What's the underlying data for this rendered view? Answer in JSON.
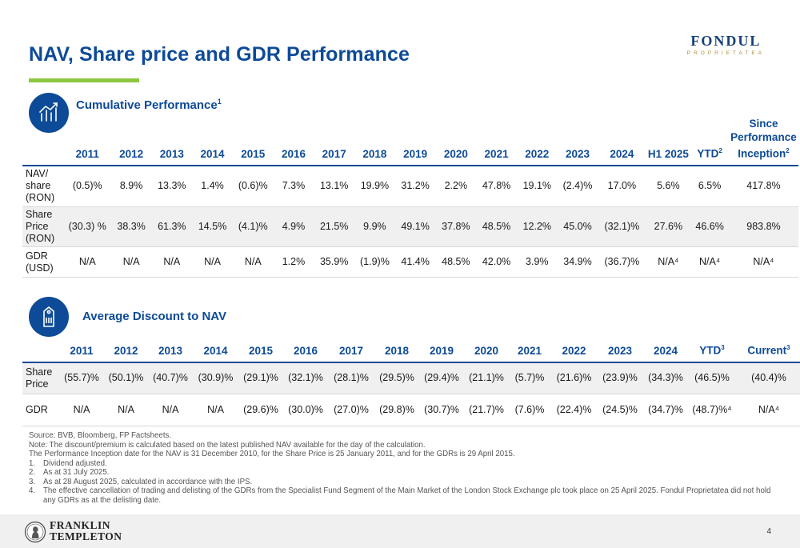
{
  "header": {
    "title": "NAV, Share price and GDR Performance",
    "logo_name": "FONDUL",
    "logo_sub": "PROPRIETATEA"
  },
  "cumulative": {
    "title": "Cumulative Performance",
    "title_sup": "1",
    "columns": [
      {
        "label": "2011",
        "sup": ""
      },
      {
        "label": "2012",
        "sup": ""
      },
      {
        "label": "2013",
        "sup": ""
      },
      {
        "label": "2014",
        "sup": ""
      },
      {
        "label": "2015",
        "sup": ""
      },
      {
        "label": "2016",
        "sup": ""
      },
      {
        "label": "2017",
        "sup": ""
      },
      {
        "label": "2018",
        "sup": ""
      },
      {
        "label": "2019",
        "sup": ""
      },
      {
        "label": "2020",
        "sup": ""
      },
      {
        "label": "2021",
        "sup": ""
      },
      {
        "label": "2022",
        "sup": ""
      },
      {
        "label": "2023",
        "sup": ""
      },
      {
        "label": "2024",
        "sup": ""
      },
      {
        "label": "H1 2025",
        "sup": ""
      },
      {
        "label": "YTD",
        "sup": "2"
      },
      {
        "label": "Since Performance Inception",
        "sup": "2"
      }
    ],
    "rows": [
      {
        "label": "NAV/ share (RON)",
        "values": [
          "(0.5)%",
          "8.9%",
          "13.3%",
          "1.4%",
          "(0.6)%",
          "7.3%",
          "13.1%",
          "19.9%",
          "31.2%",
          "2.2%",
          "47.8%",
          "19.1%",
          "(2.4)%",
          "17.0%",
          "5.6%",
          "6.5%",
          "417.8%"
        ]
      },
      {
        "label": "Share Price (RON)",
        "values": [
          "(30.3) %",
          "38.3%",
          "61.3%",
          "14.5%",
          "(4.1)%",
          "4.9%",
          "21.5%",
          "9.9%",
          "49.1%",
          "37.8%",
          "48.5%",
          "12.2%",
          "45.0%",
          "(32.1)%",
          "27.6%",
          "46.6%",
          "983.8%"
        ]
      },
      {
        "label": "GDR (USD)",
        "values": [
          "N/A",
          "N/A",
          "N/A",
          "N/A",
          "N/A",
          "1.2%",
          "35.9%",
          "(1.9)%",
          "41.4%",
          "48.5%",
          "42.0%",
          "3.9%",
          "34.9%",
          "(36.7)%",
          "N/A⁴",
          "N/A⁴",
          "N/A⁴"
        ]
      }
    ]
  },
  "discount": {
    "title": "Average Discount to NAV",
    "columns": [
      {
        "label": "2011",
        "sup": ""
      },
      {
        "label": "2012",
        "sup": ""
      },
      {
        "label": "2013",
        "sup": ""
      },
      {
        "label": "2014",
        "sup": ""
      },
      {
        "label": "2015",
        "sup": ""
      },
      {
        "label": "2016",
        "sup": ""
      },
      {
        "label": "2017",
        "sup": ""
      },
      {
        "label": "2018",
        "sup": ""
      },
      {
        "label": "2019",
        "sup": ""
      },
      {
        "label": "2020",
        "sup": ""
      },
      {
        "label": "2021",
        "sup": ""
      },
      {
        "label": "2022",
        "sup": ""
      },
      {
        "label": "2023",
        "sup": ""
      },
      {
        "label": "2024",
        "sup": ""
      },
      {
        "label": "YTD",
        "sup": "3"
      },
      {
        "label": "Current",
        "sup": "3"
      }
    ],
    "rows": [
      {
        "label": "Share Price",
        "values": [
          "(55.7)%",
          "(50.1)%",
          "(40.7)%",
          "(30.9)%",
          "(29.1)%",
          "(32.1)%",
          "(28.1)%",
          "(29.5)%",
          "(29.4)%",
          "(21.1)%",
          "(5.7)%",
          "(21.6)%",
          "(23.9)%",
          "(34.3)%",
          "(46.5)%",
          "(40.4)%"
        ]
      },
      {
        "label": "GDR",
        "values": [
          "N/A",
          "N/A",
          "N/A",
          "N/A",
          "(29.6)%",
          "(30.0)%",
          "(27.0)%",
          "(29.8)%",
          "(30.7)%",
          "(21.7)%",
          "(7.6)%",
          "(22.4)%",
          "(24.5)%",
          "(34.7)%",
          "(48.7)%⁴",
          "N/A⁴"
        ]
      }
    ]
  },
  "notes": {
    "lines": [
      "Source: BVB, Bloomberg, FP Factsheets.",
      "Note: The discount/premium is calculated based on the latest published NAV available for the day of the calculation.",
      "The Performance Inception date for the NAV is 31 December 2010, for the Share Price is 25 January 2011, and for the GDRs is 29 April 2015."
    ],
    "numbered": [
      {
        "n": "1.",
        "text": "Dividend adjusted."
      },
      {
        "n": "2.",
        "text": "As at 31 July 2025."
      },
      {
        "n": "3.",
        "text": "As at 28 August 2025, calculated in accordance with the IPS."
      },
      {
        "n": "4.",
        "text": "The effective cancellation of trading and delisting of the GDRs from the Specialist Fund Segment of the Main Market of the London Stock Exchange plc took place on 25 April 2025. Fondul Proprietatea did not hold any GDRs as at the delisting date."
      }
    ]
  },
  "footer": {
    "brand_line1": "FRANKLIN",
    "brand_line2": "TEMPLETON",
    "page_number": "4"
  },
  "colors": {
    "brand_blue": "#0d4a97",
    "accent_green": "#8dc63f",
    "row_shade": "#f0f0f0"
  }
}
